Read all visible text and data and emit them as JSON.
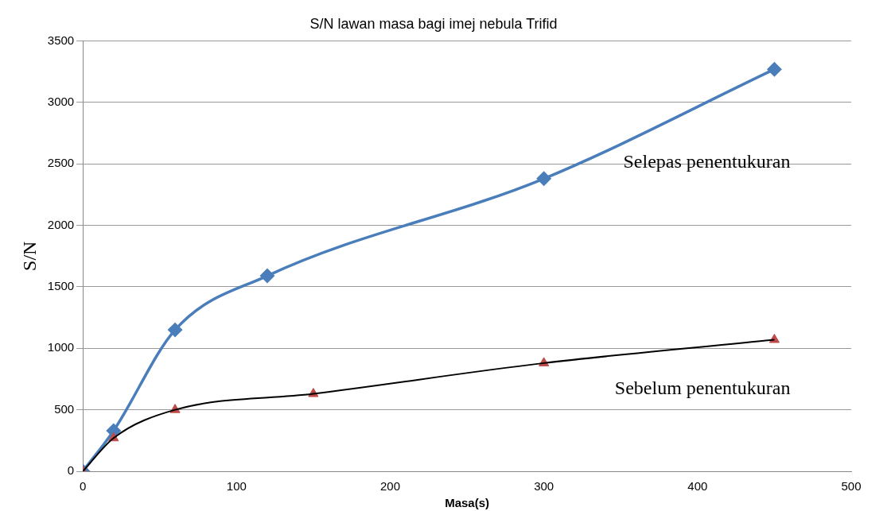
{
  "chart_data": {
    "type": "line",
    "title": "S/N lawan masa bagi imej nebula Trifid",
    "xlabel": "Masa(s)",
    "ylabel": "S/N",
    "series": [
      {
        "name": "Selepas penentukuran",
        "color": "#4a7ebb",
        "marker": "diamond",
        "x": [
          0,
          20,
          60,
          120,
          300,
          450
        ],
        "values": [
          0,
          330,
          1150,
          1590,
          2380,
          3270
        ]
      },
      {
        "type": "line",
        "color": "#000000",
        "marker": "none",
        "x": [
          0,
          20,
          60,
          150,
          300,
          450
        ],
        "values": [
          0,
          270,
          500,
          630,
          880,
          1070
        ]
      },
      {
        "name": "Sebelum penentukuran",
        "type": "scatter",
        "color": "#be4b48",
        "marker": "triangle",
        "x": [
          0,
          20,
          60,
          150,
          300,
          450
        ],
        "values": [
          0,
          270,
          500,
          630,
          880,
          1070
        ]
      }
    ],
    "xlim": [
      0,
      500
    ],
    "xticks": [
      0,
      100,
      200,
      300,
      400,
      500
    ],
    "ylim": [
      0,
      3500
    ],
    "yticks": [
      0,
      500,
      1000,
      1500,
      2000,
      2500,
      3000,
      3500
    ],
    "grid": "y",
    "legend": false
  }
}
